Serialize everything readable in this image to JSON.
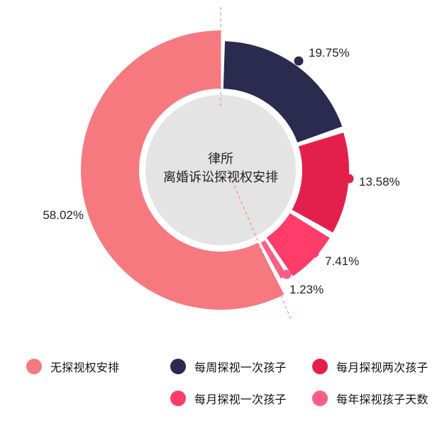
{
  "chart_data": {
    "type": "pie",
    "center_title": [
      "律所",
      "离婚诉讼探视权安排"
    ],
    "slices": [
      {
        "name": "每周探视一次孩子",
        "value": 19.75,
        "label": "19.75%",
        "color": "#2a2b4f"
      },
      {
        "name": "每月探视两次孩子",
        "value": 13.58,
        "label": "13.58%",
        "color": "#e3204b"
      },
      {
        "name": "每月探视一次孩子",
        "value": 7.41,
        "label": "7.41%",
        "color": "#ff3d6b"
      },
      {
        "name": "每年探视孩子天数",
        "value": 1.23,
        "label": "1.23%",
        "color": "#ff5d86"
      },
      {
        "name": "无探视权安排",
        "value": 58.02,
        "label": "58.02%",
        "color": "#f77980"
      }
    ],
    "legend": [
      {
        "name": "无探视权安排",
        "color": "#f77980"
      },
      {
        "name": "每周探视一次孩子",
        "color": "#2a2b4f"
      },
      {
        "name": "每月探视两次孩子",
        "color": "#e3204b"
      },
      {
        "name": "每月探视一次孩子",
        "color": "#ff3d6b"
      },
      {
        "name": "每年探视孩子天数",
        "color": "#ff5d86"
      }
    ],
    "colors": {
      "center_fill": "#e4e4e4",
      "guide_line": "#ff6b7d",
      "label_text": "#222222"
    }
  }
}
